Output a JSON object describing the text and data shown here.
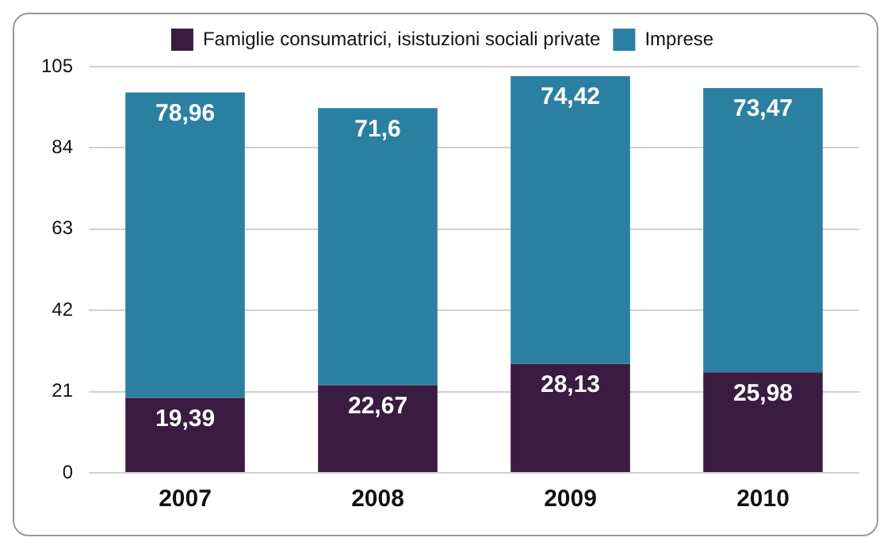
{
  "chart_data": {
    "type": "bar",
    "stacked": true,
    "categories": [
      "2007",
      "2008",
      "2009",
      "2010"
    ],
    "series": [
      {
        "name": "Famiglie consumatrici, isistuzioni sociali private",
        "color": "#3a1c40",
        "values": [
          19.39,
          22.67,
          28.13,
          25.98
        ],
        "value_labels": [
          "19,39",
          "22,67",
          "28,13",
          "25,98"
        ]
      },
      {
        "name": "Imprese",
        "color": "#2b80a2",
        "values": [
          78.96,
          71.6,
          74.42,
          73.47
        ],
        "value_labels": [
          "78,96",
          "71,6",
          "74,42",
          "73,47"
        ]
      }
    ],
    "ylim": [
      0,
      105
    ],
    "yticks": [
      0,
      21,
      42,
      63,
      84,
      105
    ],
    "grid": "y",
    "legend": "top"
  }
}
